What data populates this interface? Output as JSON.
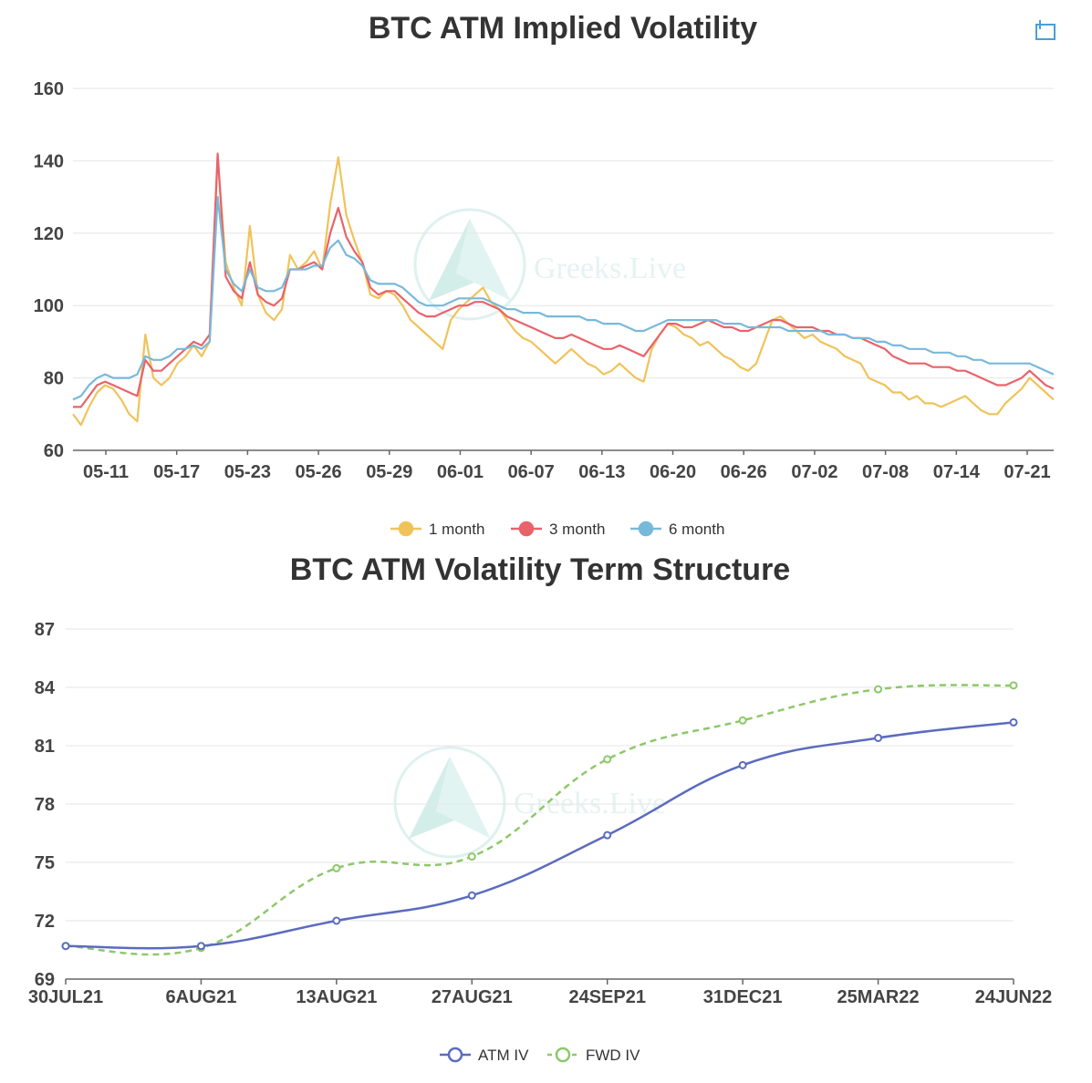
{
  "toolbar": {
    "restore_icon": "restore-icon"
  },
  "watermark": {
    "text": "Greeks.Live"
  },
  "chart_data": [
    {
      "type": "line",
      "title": "BTC ATM Implied Volatility",
      "ylim": [
        60,
        160
      ],
      "yticks": [
        60,
        80,
        100,
        120,
        140,
        160
      ],
      "x_tick_labels": [
        "05-11",
        "05-17",
        "05-23",
        "05-26",
        "05-29",
        "06-01",
        "06-07",
        "06-13",
        "06-20",
        "06-26",
        "07-02",
        "07-08",
        "07-14",
        "07-21"
      ],
      "grid": true,
      "legend_position": "bottom",
      "series": [
        {
          "name": "1 month",
          "color": "#f0c35a",
          "values": [
            70,
            67,
            72,
            76,
            78,
            77,
            74,
            70,
            68,
            92,
            80,
            78,
            80,
            84,
            86,
            89,
            86,
            90,
            141,
            112,
            105,
            100,
            122,
            103,
            98,
            96,
            99,
            114,
            110,
            112,
            115,
            110,
            128,
            141,
            125,
            118,
            112,
            103,
            102,
            104,
            103,
            100,
            96,
            94,
            92,
            90,
            88,
            96,
            99,
            101,
            103,
            105,
            101,
            99,
            96,
            93,
            91,
            90,
            88,
            86,
            84,
            86,
            88,
            86,
            84,
            83,
            81,
            82,
            84,
            82,
            80,
            79,
            88,
            92,
            95,
            94,
            92,
            91,
            89,
            90,
            88,
            86,
            85,
            83,
            82,
            84,
            90,
            96,
            97,
            95,
            93,
            91,
            92,
            90,
            89,
            88,
            86,
            85,
            84,
            80,
            79,
            78,
            76,
            76,
            74,
            75,
            73,
            73,
            72,
            73,
            74,
            75,
            73,
            71,
            70,
            70,
            73,
            75,
            77,
            80,
            78,
            76,
            74
          ]
        },
        {
          "name": "3 month",
          "color": "#e8636a",
          "values": [
            72,
            72,
            75,
            78,
            79,
            78,
            77,
            76,
            75,
            85,
            82,
            82,
            84,
            86,
            88,
            90,
            89,
            92,
            142,
            108,
            104,
            102,
            112,
            103,
            101,
            100,
            102,
            110,
            110,
            111,
            112,
            110,
            120,
            127,
            119,
            115,
            112,
            105,
            103,
            104,
            104,
            102,
            100,
            98,
            97,
            97,
            98,
            99,
            100,
            100,
            101,
            101,
            100,
            99,
            97,
            96,
            95,
            94,
            93,
            92,
            91,
            91,
            92,
            91,
            90,
            89,
            88,
            88,
            89,
            88,
            87,
            86,
            89,
            92,
            95,
            95,
            94,
            94,
            95,
            96,
            95,
            94,
            94,
            93,
            93,
            94,
            95,
            96,
            96,
            95,
            94,
            94,
            94,
            93,
            93,
            92,
            92,
            91,
            91,
            90,
            89,
            88,
            86,
            85,
            84,
            84,
            84,
            83,
            83,
            83,
            82,
            82,
            81,
            80,
            79,
            78,
            78,
            79,
            80,
            82,
            80,
            78,
            77
          ]
        },
        {
          "name": "6 month",
          "color": "#78b9da",
          "values": [
            74,
            75,
            78,
            80,
            81,
            80,
            80,
            80,
            81,
            86,
            85,
            85,
            86,
            88,
            88,
            89,
            88,
            90,
            130,
            110,
            106,
            104,
            110,
            105,
            104,
            104,
            105,
            110,
            110,
            110,
            111,
            111,
            116,
            118,
            114,
            113,
            111,
            107,
            106,
            106,
            106,
            105,
            103,
            101,
            100,
            100,
            100,
            101,
            102,
            102,
            102,
            102,
            101,
            100,
            99,
            99,
            98,
            98,
            98,
            97,
            97,
            97,
            97,
            97,
            96,
            96,
            95,
            95,
            95,
            94,
            93,
            93,
            94,
            95,
            96,
            96,
            96,
            96,
            96,
            96,
            96,
            95,
            95,
            95,
            94,
            94,
            94,
            94,
            94,
            93,
            93,
            93,
            93,
            93,
            92,
            92,
            92,
            91,
            91,
            91,
            90,
            90,
            89,
            89,
            88,
            88,
            88,
            87,
            87,
            87,
            86,
            86,
            85,
            85,
            84,
            84,
            84,
            84,
            84,
            84,
            83,
            82,
            81
          ]
        }
      ]
    },
    {
      "type": "line",
      "title": "BTC ATM Volatility Term Structure",
      "categories": [
        "30JUL21",
        "6AUG21",
        "13AUG21",
        "27AUG21",
        "24SEP21",
        "31DEC21",
        "25MAR22",
        "24JUN22"
      ],
      "ylim": [
        69,
        87
      ],
      "yticks": [
        69,
        72,
        75,
        78,
        81,
        84,
        87
      ],
      "grid": true,
      "legend_position": "bottom",
      "series": [
        {
          "name": "ATM IV",
          "color": "#5b6bbf",
          "style": "solid",
          "values": [
            70.7,
            70.7,
            72.0,
            73.3,
            76.4,
            80.0,
            81.4,
            82.2
          ]
        },
        {
          "name": "FWD IV",
          "color": "#8dc86a",
          "style": "dashed",
          "values": [
            70.7,
            70.6,
            74.7,
            75.3,
            80.3,
            82.3,
            83.9,
            84.1
          ]
        }
      ]
    }
  ]
}
